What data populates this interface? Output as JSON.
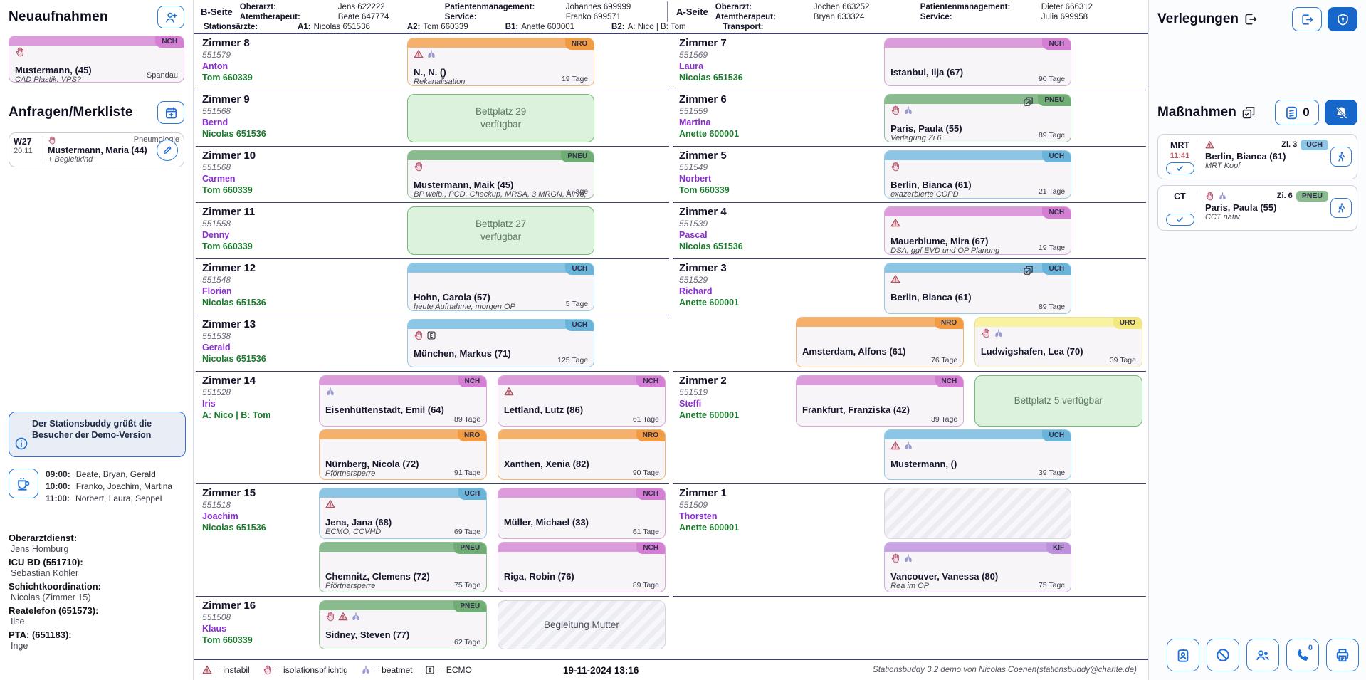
{
  "app": {
    "datetime": "19-11-2024 13:16",
    "credit": "Stationsbuddy 3.2 demo von Nicolas Coenen(stationsbuddy@charite.de)"
  },
  "specialty_colors": {
    "NCH": {
      "bar": "#dc9cdc",
      "badge": "#d47ed4",
      "border": "#d9a6d9"
    },
    "NRO": {
      "bar": "#f5b06c",
      "badge": "#f19c42",
      "border": "#f0b276"
    },
    "PNEU": {
      "bar": "#8abb8e",
      "badge": "#6fad74",
      "border": "#90c093"
    },
    "UCH": {
      "bar": "#8dc6e4",
      "badge": "#6ab4da",
      "border": "#95cbe6"
    },
    "URO": {
      "bar": "#f8f2a2",
      "badge": "#f3e87e",
      "border": "#ece09b"
    },
    "KIF": {
      "bar": "#c9a4e4",
      "badge": "#bd90dc",
      "border": "#cbabe3"
    }
  },
  "left_sidebar": {
    "neuaufnahmen_title": "Neuaufnahmen",
    "admission_card": {
      "badge": "NCH",
      "icons": [
        "isolation"
      ],
      "name": "Mustermann, (45)",
      "note": "CAD Plastik, VPS?",
      "footer": "Spandau"
    },
    "anfragen_title": "Anfragen/Merkliste",
    "request_card": {
      "week": "W27",
      "date": "20.11",
      "icons": [
        "isolation"
      ],
      "specialty": "Pneumologie",
      "name": "Mustermann, Maria (44)",
      "note": "+ Begleitkind"
    },
    "info_text": "Der Stationsbuddy grüßt die Besucher der Demo-Version",
    "coffee_times": [
      [
        "09:00:",
        "Beate, Bryan, Gerald"
      ],
      [
        "10:00:",
        "Franko, Joachim, Martina"
      ],
      [
        "11:00:",
        "Norbert, Laura, Seppel"
      ]
    ],
    "duty": [
      [
        "Oberarztdienst:",
        "Jens Homburg"
      ],
      [
        "ICU BD (551710):",
        "Sebastian Köhler"
      ],
      [
        "Schichtkoordination:",
        "Nicolas (Zimmer 15)"
      ],
      [
        "Reatelefon (651573):",
        "Ilse"
      ],
      [
        "PTA: (651183):",
        "Inge"
      ]
    ]
  },
  "header": {
    "b": {
      "label": "B-Seite",
      "pairs": [
        [
          "Oberarzt:",
          "Jens 622222"
        ],
        [
          "Patientenmanagement:",
          "Johannes 699999"
        ],
        [
          "Atemtherapeut:",
          "Beate 647774"
        ],
        [
          "Service:",
          "Franko 699571"
        ]
      ]
    },
    "a": {
      "label": "A-Seite",
      "pairs": [
        [
          "Oberarzt:",
          "Jochen 663252"
        ],
        [
          "Patientenmanagement:",
          "Dieter 666312"
        ],
        [
          "Atemtherapeut:",
          "Bryan 633324"
        ],
        [
          "Service:",
          "Julia 699958"
        ]
      ]
    },
    "staff_row": [
      [
        "Stationsärzte:",
        ""
      ],
      [
        "A1:",
        "Nicolas 651536"
      ],
      [
        "A2:",
        "Tom 660339"
      ],
      [
        "B1:",
        "Anette 600001"
      ],
      [
        "B2:",
        "A: Nico | B: Tom"
      ],
      [
        "Transport:",
        ""
      ]
    ]
  },
  "rooms_left": [
    {
      "name": "Zimmer 8",
      "station": "551579",
      "nurse": "Anton",
      "doctor": "Tom 660339",
      "size": 1,
      "rows": [
        [
          {
            "type": "patient",
            "badge": "NRO",
            "icons": [
              "instabil",
              "beatmet"
            ],
            "name": "N., N. ()",
            "note": "Rekanalisation",
            "days": "19 Tage",
            "slot": "center"
          }
        ]
      ]
    },
    {
      "name": "Zimmer 9",
      "station": "551568",
      "nurse": "Bernd",
      "doctor": "Nicolas 651536",
      "size": 1,
      "rows": [
        [
          {
            "type": "free",
            "text": "Bettplatz 29 verfügbar",
            "slot": "center"
          }
        ]
      ]
    },
    {
      "name": "Zimmer 10",
      "station": "551568",
      "nurse": "Carmen",
      "doctor": "Tom 660339",
      "size": 1,
      "rows": [
        [
          {
            "type": "patient",
            "badge": "PNEU",
            "icons": [
              "isolation"
            ],
            "name": "Mustermann, Maik (45)",
            "note": "BP weib., PCD, Checkup, MRSA, 3 MRGN, Airvo,",
            "days": "7 Tage",
            "slot": "center"
          }
        ]
      ]
    },
    {
      "name": "Zimmer 11",
      "station": "551558",
      "nurse": "Denny",
      "doctor": "Tom 660339",
      "size": 1,
      "rows": [
        [
          {
            "type": "free",
            "text": "Bettplatz 27 verfügbar",
            "slot": "center"
          }
        ]
      ]
    },
    {
      "name": "Zimmer 12",
      "station": "551548",
      "nurse": "Florian",
      "doctor": "Nicolas 651536",
      "size": 1,
      "rows": [
        [
          {
            "type": "patient",
            "badge": "UCH",
            "icons": [],
            "name": "Hohn, Carola (57)",
            "note": "heute Aufnahme, morgen OP",
            "days": "5 Tage",
            "slot": "center"
          }
        ]
      ]
    },
    {
      "name": "Zimmer 13",
      "station": "551538",
      "nurse": "Gerald",
      "doctor": "Nicolas 651536",
      "size": 1,
      "rows": [
        [
          {
            "type": "patient",
            "badge": "UCH",
            "icons": [
              "isolation",
              "ecmo"
            ],
            "name": "München, Markus (71)",
            "note": "",
            "days": "125 Tage",
            "slot": "center"
          }
        ]
      ]
    },
    {
      "name": "Zimmer 14",
      "station": "551528",
      "nurse": "Iris",
      "doctor": "A: Nico | B: Tom",
      "size": 2,
      "rows": [
        [
          {
            "type": "patient",
            "badge": "NCH",
            "icons": [
              "beatmet"
            ],
            "name": "Eisenhüttenstadt, Emil (64)",
            "note": "",
            "days": "89 Tage",
            "slot": "left"
          },
          {
            "type": "patient",
            "badge": "NCH",
            "icons": [
              "instabil"
            ],
            "name": "Lettland, Lutz (86)",
            "note": "",
            "days": "61 Tage",
            "slot": "right"
          }
        ],
        [
          {
            "type": "patient",
            "badge": "NRO",
            "icons": [],
            "name": "Nürnberg, Nicola (72)",
            "note": "Pförtnersperre",
            "days": "91 Tage",
            "slot": "left"
          },
          {
            "type": "patient",
            "badge": "NRO",
            "icons": [],
            "name": "Xanthen, Xenia (82)",
            "note": "",
            "days": "90 Tage",
            "slot": "right"
          }
        ]
      ]
    },
    {
      "name": "Zimmer 15",
      "station": "551518",
      "nurse": "Joachim",
      "doctor": "Nicolas 651536",
      "size": 2,
      "rows": [
        [
          {
            "type": "patient",
            "badge": "UCH",
            "icons": [
              "instabil"
            ],
            "name": "Jena, Jana (68)",
            "note": "ECMO, CCVHD",
            "days": "69 Tage",
            "slot": "left"
          },
          {
            "type": "patient",
            "badge": "NCH",
            "icons": [],
            "name": "Müller, Michael (33)",
            "note": "",
            "days": "61 Tage",
            "slot": "right"
          }
        ],
        [
          {
            "type": "patient",
            "badge": "PNEU",
            "icons": [],
            "name": "Chemnitz, Clemens (72)",
            "note": "Pförtnersperre",
            "days": "75 Tage",
            "slot": "left"
          },
          {
            "type": "patient",
            "badge": "NCH",
            "icons": [],
            "name": "Riga, Robin (76)",
            "note": "",
            "days": "89 Tage",
            "slot": "right"
          }
        ]
      ]
    },
    {
      "name": "Zimmer 16",
      "station": "551508",
      "nurse": "Klaus",
      "doctor": "Tom 660339",
      "size": 1,
      "rows": [
        [
          {
            "type": "patient",
            "badge": "PNEU",
            "icons": [
              "isolation",
              "instabil",
              "beatmet"
            ],
            "name": "Sidney, Steven (77)",
            "note": "",
            "days": "62 Tage",
            "slot": "left"
          },
          {
            "type": "hatched",
            "text": "Begleitung Mutter",
            "slot": "right"
          }
        ]
      ]
    }
  ],
  "rooms_right": [
    {
      "name": "Zimmer 7",
      "station": "551569",
      "nurse": "Laura",
      "doctor": "Nicolas 651536",
      "size": 1,
      "rows": [
        [
          {
            "type": "patient",
            "badge": "NCH",
            "icons": [],
            "name": "Istanbul, Ilja (67)",
            "note": "",
            "days": "90 Tage",
            "slot": "center"
          }
        ]
      ]
    },
    {
      "name": "Zimmer 6",
      "station": "551559",
      "nurse": "Martina",
      "doctor": "Anette 600001",
      "size": 1,
      "rows": [
        [
          {
            "type": "patient",
            "badge": "PNEU",
            "icons": [
              "isolation",
              "beatmet"
            ],
            "transfer": true,
            "name": "Paris, Paula (55)",
            "note": "Verlegung Zi 6",
            "days": "89 Tage",
            "slot": "center"
          }
        ]
      ]
    },
    {
      "name": "Zimmer 5",
      "station": "551549",
      "nurse": "Norbert",
      "doctor": "Tom 660339",
      "size": 1,
      "rows": [
        [
          {
            "type": "patient",
            "badge": "UCH",
            "icons": [
              "isolation"
            ],
            "name": "Berlin, Bianca (61)",
            "note": "exazerbierte COPD",
            "days": "21 Tage",
            "slot": "center"
          }
        ]
      ]
    },
    {
      "name": "Zimmer 4",
      "station": "551539",
      "nurse": "Pascal",
      "doctor": "Nicolas 651536",
      "size": 1,
      "rows": [
        [
          {
            "type": "patient",
            "badge": "NCH",
            "icons": [
              "instabil"
            ],
            "name": "Mauerblume, Mira (67)",
            "note": "DSA, ggf EVD und OP Planung",
            "days": "19 Tage",
            "slot": "center"
          }
        ]
      ]
    },
    {
      "name": "Zimmer 3",
      "station": "551529",
      "nurse": "Richard",
      "doctor": "Anette 600001",
      "size": 2,
      "rows": [
        [
          {
            "type": "patient",
            "badge": "UCH",
            "icons": [
              "instabil"
            ],
            "transfer": true,
            "name": "Berlin, Bianca (61)",
            "note": "",
            "days": "89 Tage",
            "slot": "center"
          }
        ],
        [
          {
            "type": "patient",
            "badge": "NRO",
            "icons": [],
            "name": "Amsterdam, Alfons (61)",
            "note": "",
            "days": "76 Tage",
            "slot": "left"
          },
          {
            "type": "patient",
            "badge": "URO",
            "icons": [
              "isolation",
              "beatmet"
            ],
            "name": "Ludwigshafen, Lea (70)",
            "note": "",
            "days": "39 Tage",
            "slot": "right"
          }
        ]
      ]
    },
    {
      "name": "Zimmer 2",
      "station": "551519",
      "nurse": "Steffi",
      "doctor": "Anette 600001",
      "size": 2,
      "rows": [
        [
          {
            "type": "patient",
            "badge": "NCH",
            "icons": [],
            "name": "Frankfurt, Franziska (42)",
            "note": "",
            "days": "39 Tage",
            "slot": "left"
          },
          {
            "type": "free",
            "text": "Bettplatz 5 verfügbar",
            "slot": "right"
          }
        ],
        [
          {
            "type": "patient",
            "badge": "UCH",
            "icons": [
              "instabil",
              "beatmet"
            ],
            "name": "Mustermann, ()",
            "note": "",
            "days": "39 Tage",
            "slot": "center"
          }
        ]
      ]
    },
    {
      "name": "Zimmer 1",
      "station": "551509",
      "nurse": "Thorsten",
      "doctor": "Anette 600001",
      "size": 2,
      "rows": [
        [
          {
            "type": "hatched",
            "text": "",
            "slot": "center"
          }
        ],
        [
          {
            "type": "patient",
            "badge": "KIF",
            "icons": [
              "isolation",
              "beatmet"
            ],
            "name": "Vancouver, Vanessa (80)",
            "note": "Rea im OP",
            "days": "75 Tage",
            "slot": "center"
          }
        ]
      ]
    }
  ],
  "legend": [
    {
      "icon": "instabil",
      "text": "= instabil"
    },
    {
      "icon": "isolation",
      "text": "= isolationspflichtig"
    },
    {
      "icon": "beatmet",
      "text": "= beatmet"
    },
    {
      "icon": "ecmo",
      "text": "= ECMO"
    }
  ],
  "right_sidebar": {
    "transfers_title": "Verlegungen",
    "measures_title": "Maßnahmen",
    "bed_count": "0",
    "phone_count": "0",
    "measures": [
      {
        "modality": "MRT",
        "time": "11:41",
        "room": "Zi. 3",
        "badge": "UCH",
        "icons": [
          "instabil"
        ],
        "name": "Berlin, Bianca (61)",
        "note": "MRT Kopf"
      },
      {
        "modality": "CT",
        "time": "",
        "room": "Zi. 6",
        "badge": "PNEU",
        "icons": [
          "isolation",
          "beatmet"
        ],
        "name": "Paris, Paula (55)",
        "note": "CCT nativ"
      }
    ],
    "action_icons": [
      "id-badge",
      "block",
      "people",
      "phone",
      "printer"
    ]
  }
}
